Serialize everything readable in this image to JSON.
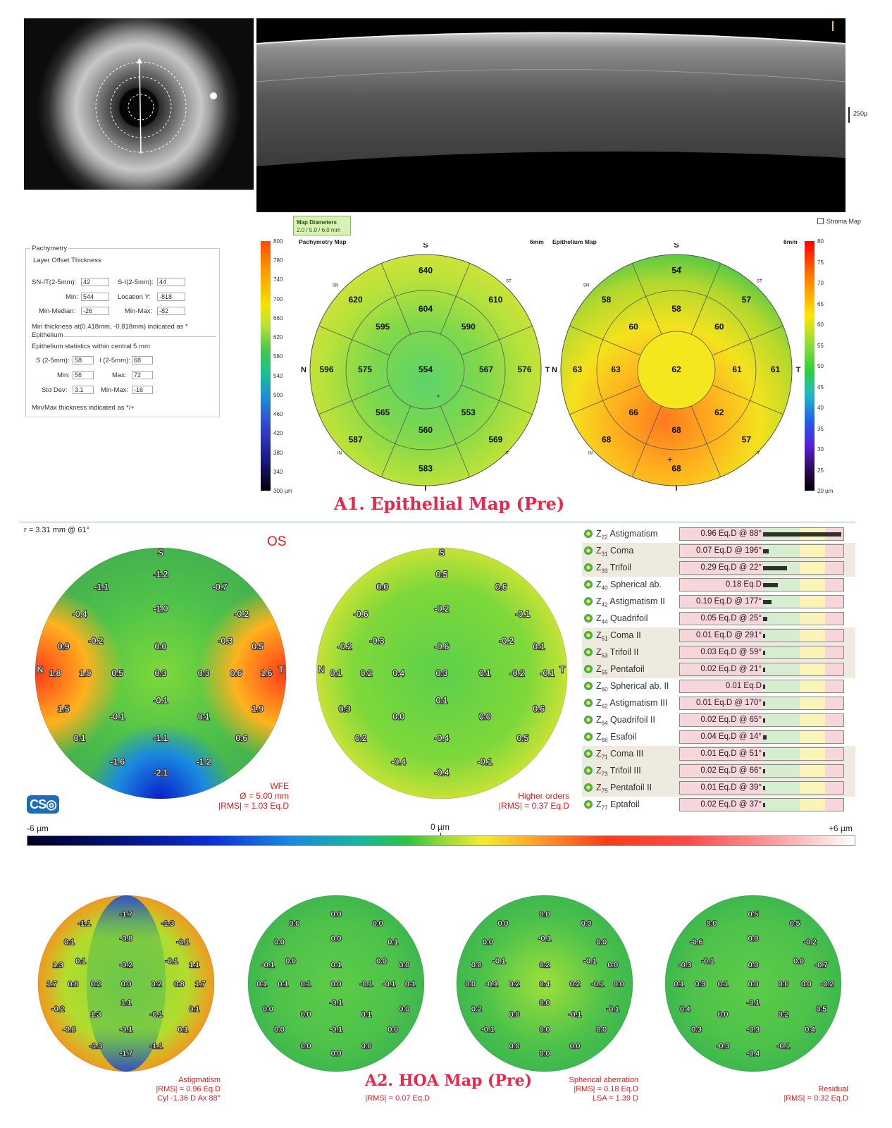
{
  "oct": {
    "scale_label": "250µ"
  },
  "pachymetry_panel": {
    "group_title": "Pachymetry",
    "layer_header": "Layer  Offset  Thickness",
    "fields": [
      {
        "label": "SN-IT(2-5mm):",
        "value": "42"
      },
      {
        "label": "S-I(2-5mm):",
        "value": "44"
      },
      {
        "label": "Min:",
        "value": "544"
      },
      {
        "label": "Location Y:",
        "value": "-818"
      },
      {
        "label": "Min-Median:",
        "value": "-26"
      },
      {
        "label": "Min-Max:",
        "value": "-82"
      }
    ],
    "min_note": "Min thickness at(0.418mm, -0.818mm) indicated as *",
    "epithelium_title": "Epithelium",
    "epithelium_stats_title": "Epithelium statistics within central 5 mm",
    "epithelium_fields": [
      {
        "label": "S (2-5mm):",
        "value": "58"
      },
      {
        "label": "I (2-5mm):",
        "value": "68"
      },
      {
        "label": "Min:",
        "value": "56"
      },
      {
        "label": "Max:",
        "value": "72"
      },
      {
        "label": "Std Dev:",
        "value": "3.1"
      },
      {
        "label": "Min-Max:",
        "value": "-16"
      }
    ],
    "minmax_note": "Min/Max thickness indicated as */+"
  },
  "map_header": {
    "map_diameters_title": "Map Diameters",
    "map_diameters_value": "2.0 / 5.0 / 6.0 mm",
    "stroma_checkbox": "Stroma Map",
    "pachy_title": "Pachymetry Map",
    "pachy_size": "6mm",
    "epi_title": "Epithelium Map",
    "epi_size": "6mm"
  },
  "scale_left_ticks": [
    "800",
    "780",
    "740",
    "700",
    "660",
    "620",
    "580",
    "540",
    "500",
    "460",
    "420",
    "380",
    "340",
    "300 µm"
  ],
  "scale_right_ticks": [
    "80",
    "75",
    "70",
    "65",
    "60",
    "55",
    "50",
    "45",
    "40",
    "35",
    "30",
    "25",
    "20 µm"
  ],
  "pachymetry_map": {
    "labels": {
      "S": "S",
      "N": "N",
      "T": "T",
      "I": "I",
      "SN": "SN",
      "ST": "ST",
      "IN": "IN",
      "IT": "IT"
    },
    "center": "554",
    "inner": {
      "S": "604",
      "ST": "590",
      "T": "567",
      "IT": "553",
      "I": "560",
      "IN": "565",
      "N": "575",
      "SN": "595"
    },
    "outer": {
      "S": "640",
      "ST": "610",
      "T": "576",
      "IT": "569",
      "I": "583",
      "IN": "587",
      "N": "596",
      "SN": "620"
    }
  },
  "epithelium_map": {
    "labels": {
      "S": "S",
      "N": "N",
      "T": "T",
      "I": "I",
      "SN": "SN",
      "ST": "ST",
      "IN": "IN",
      "IT": "IT"
    },
    "center": "62",
    "inner": {
      "S": "58",
      "ST": "60",
      "T": "61",
      "IT": "62",
      "I": "68",
      "IN": "66",
      "N": "63",
      "SN": "60"
    },
    "outer": {
      "S": "54",
      "ST": "57",
      "T": "61",
      "IT": "57",
      "I": "68",
      "IN": "68",
      "N": "63",
      "SN": "58"
    }
  },
  "titles": {
    "a1": "A1. Epithelial Map (Pre)",
    "a2": "A2. HOA Map (Pre)"
  },
  "aberrometry": {
    "radius": "r = 3.31 mm @ 61°",
    "eye": "OS",
    "logo": "CS",
    "wfe_caption": [
      "WFE",
      "Ø = 5.00 mm",
      "|RMS| = 1.03 Eq.D"
    ],
    "ho_caption": [
      "Higher orders",
      "|RMS| = 0.37 Eq.D"
    ],
    "scale_min": "-6 µm",
    "scale_zero": "0 µm",
    "scale_max": "+6 µm"
  },
  "zernike": [
    {
      "idx": "22",
      "name": "Astigmatism",
      "value": "0.96 Eq.D @ 88°",
      "bar": 0.96
    },
    {
      "idx": "31",
      "name": "Coma",
      "value": "0.07 Eq.D @ 196°",
      "bar": 0.07
    },
    {
      "idx": "33",
      "name": "Trifoil",
      "value": "0.29 Eq.D @ 22°",
      "bar": 0.29
    },
    {
      "idx": "40",
      "name": "Spherical ab.",
      "value": "0.18 Eq.D",
      "bar": 0.18
    },
    {
      "idx": "42",
      "name": "Astigmatism II",
      "value": "0.10 Eq.D @ 177°",
      "bar": 0.1
    },
    {
      "idx": "44",
      "name": "Quadrifoil",
      "value": "0.05 Eq.D @ 25°",
      "bar": 0.05
    },
    {
      "idx": "51",
      "name": "Coma II",
      "value": "0.01 Eq.D @ 291°",
      "bar": 0.01
    },
    {
      "idx": "53",
      "name": "Trifoil II",
      "value": "0.03 Eq.D @ 59°",
      "bar": 0.03
    },
    {
      "idx": "55",
      "name": "Pentafoil",
      "value": "0.02 Eq.D @ 21°",
      "bar": 0.02
    },
    {
      "idx": "60",
      "name": "Spherical ab. II",
      "value": "0.01 Eq.D",
      "bar": 0.01
    },
    {
      "idx": "62",
      "name": "Astigmatism III",
      "value": "0.01 Eq.D @ 170°",
      "bar": 0.01
    },
    {
      "idx": "64",
      "name": "Quadrifoil II",
      "value": "0.02 Eq.D @ 65°",
      "bar": 0.02
    },
    {
      "idx": "66",
      "name": "Esafoil",
      "value": "0.04 Eq.D @ 14°",
      "bar": 0.04
    },
    {
      "idx": "71",
      "name": "Coma III",
      "value": "0.01 Eq.D @ 51°",
      "bar": 0.01
    },
    {
      "idx": "73",
      "name": "Trifoil III",
      "value": "0.02 Eq.D @ 66°",
      "bar": 0.02
    },
    {
      "idx": "75",
      "name": "Pentafoil II",
      "value": "0.01 Eq.D @ 39°",
      "bar": 0.01
    },
    {
      "idx": "77",
      "name": "Eptafoil",
      "value": "0.02 Eq.D @ 37°",
      "bar": 0.02
    }
  ],
  "wave_maps": {
    "wfe": {
      "top": "S",
      "left_mark": "N",
      "right_mark": "T",
      "values": [
        "-1.2",
        "-1.1",
        "-0.7",
        "-0.4",
        "-1.0",
        "-0.2",
        "-0.2",
        "-0.3",
        "0.9",
        "0.0",
        "0.5",
        "1.8",
        "1.0",
        "0.5",
        "0.3",
        "0.3",
        "0.6",
        "1.6",
        "-0.1",
        "1.5",
        "-0.1",
        "0.1",
        "1.9",
        "-1.1",
        "0.1",
        "0.6",
        "-1.6",
        "-2.1",
        "-1.2"
      ]
    },
    "higher": {
      "top": "S",
      "left_mark": "N",
      "right_mark": "T",
      "values": [
        "0.5",
        "0.0",
        "0.6",
        "-0.6",
        "-0.2",
        "-0.1",
        "-0.3",
        "-0.2",
        "-0.2",
        "-0.6",
        "0.1",
        "0.1",
        "0.2",
        "0.4",
        "0.3",
        "0.1",
        "-0.2",
        "-0.1",
        "0.1",
        "0.3",
        "0.0",
        "0.0",
        "0.6",
        "-0.4",
        "0.2",
        "0.5",
        "-0.4",
        "-0.4",
        "-0.1"
      ]
    },
    "astig": {
      "values": [
        "-1.7",
        "-1.1",
        "-1.3",
        "0.1",
        "-0.8",
        "-0.1",
        "0.1",
        "-0.1",
        "1.3",
        "-0.2",
        "1.1",
        "1.7",
        "0.8",
        "0.2",
        "0.0",
        "0.2",
        "0.8",
        "1.7",
        "1.1",
        "-0.2",
        "1.3",
        "-0.1",
        "0.1",
        "-0.1",
        "-0.8",
        "0.1",
        "-1.3",
        "-1.7",
        "-1.1"
      ],
      "caption": [
        "Astigmatism",
        "|RMS| = 0.96 Eq.D",
        "Cyl -1.36 D Ax 88°"
      ]
    },
    "coma": {
      "values": [
        "0.0",
        "0.0",
        "0.0",
        "0.0",
        "0.0",
        "0.1",
        "0.0",
        "0.0",
        "-0.1",
        "0.1",
        "0.0",
        "0.1",
        "0.1",
        "0.1",
        "0.0",
        "-0.1",
        "-0.1",
        "0.1",
        "-0.1",
        "0.0",
        "0.0",
        "0.1",
        "0.0",
        "-0.1",
        "0.0",
        "0.0",
        "0.0",
        "0.0",
        "0.0"
      ],
      "caption": [
        "|RMS| = 0.07 Eq.D"
      ]
    },
    "spherical": {
      "values": [
        "0.0",
        "0.0",
        "0.0",
        "0.0",
        "-0.1",
        "0.0",
        "-0.1",
        "-0.1",
        "0.0",
        "0.2",
        "0.0",
        "0.0",
        "-0.1",
        "0.2",
        "0.4",
        "0.2",
        "-0.1",
        "0.0",
        "0.0",
        "0.2",
        "0.0",
        "-0.1",
        "-0.1",
        "0.0",
        "-0.1",
        "0.0",
        "0.0",
        "0.0",
        "0.0"
      ],
      "caption": [
        "Spherical aberration",
        "|RMS| = 0.18 Eq.D",
        "LSA = 1.39 D"
      ]
    },
    "residual": {
      "values": [
        "0.5",
        "0.0",
        "0.5",
        "-0.6",
        "0.0",
        "-0.2",
        "-0.1",
        "0.0",
        "-0.3",
        "0.0",
        "-0.7",
        "0.1",
        "0.3",
        "0.1",
        "0.0",
        "0.0",
        "0.0",
        "-0.2",
        "-0.1",
        "0.4",
        "0.0",
        "0.2",
        "0.5",
        "-0.3",
        "0.3",
        "0.4",
        "-0.3",
        "-0.4",
        "-0.1"
      ],
      "caption": [
        "Residual",
        "|RMS| = 0.32 Eq.D"
      ]
    }
  },
  "colors": {
    "title_red": "#e8274b",
    "caption_red": "#e01c1c",
    "table_bg": "#f6d6da"
  }
}
